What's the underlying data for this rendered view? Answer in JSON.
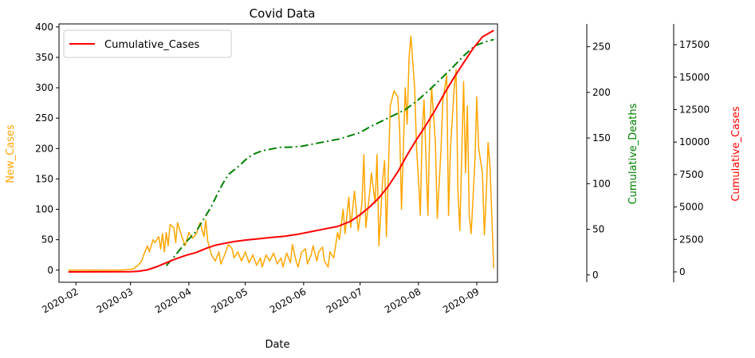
{
  "chart_data": {
    "type": "line",
    "title": "Covid Data",
    "xlabel": "Date",
    "x_ticks": [
      "2020-02",
      "2020-03",
      "2020-04",
      "2020-05",
      "2020-06",
      "2020-07",
      "2020-08",
      "2020-09"
    ],
    "x_range": [
      "2020-01-23",
      "2020-09-12"
    ],
    "legend": {
      "entries": [
        "Cumulative_Cases"
      ],
      "placement": "top-left"
    },
    "grid": false,
    "axes": [
      {
        "id": "left",
        "label": "New_Cases",
        "color": "#FFA500",
        "range": [
          -20,
          405
        ],
        "ticks": [
          0,
          50,
          100,
          150,
          200,
          250,
          300,
          350,
          400
        ]
      },
      {
        "id": "right1",
        "label": "Cumulative_Deaths",
        "color": "#008000",
        "range": [
          -8,
          275
        ],
        "ticks": [
          0,
          50,
          100,
          150,
          200,
          250
        ]
      },
      {
        "id": "right2",
        "label": "Cumulative_Cases",
        "color": "#FF0000",
        "range": [
          -800,
          19100
        ],
        "ticks": [
          0,
          2500,
          5000,
          7500,
          10000,
          12500,
          15000,
          17500
        ]
      }
    ],
    "series": [
      {
        "name": "New_Cases",
        "axis": "left",
        "color": "#FFA500",
        "style": "solid",
        "points": [
          [
            "2020-01-28",
            0
          ],
          [
            "2020-02-10",
            0
          ],
          [
            "2020-02-25",
            0
          ],
          [
            "2020-03-01",
            1
          ],
          [
            "2020-03-03",
            3
          ],
          [
            "2020-03-05",
            8
          ],
          [
            "2020-03-07",
            15
          ],
          [
            "2020-03-08",
            25
          ],
          [
            "2020-03-10",
            40
          ],
          [
            "2020-03-11",
            30
          ],
          [
            "2020-03-13",
            50
          ],
          [
            "2020-03-14",
            45
          ],
          [
            "2020-03-16",
            55
          ],
          [
            "2020-03-17",
            35
          ],
          [
            "2020-03-18",
            60
          ],
          [
            "2020-03-19",
            30
          ],
          [
            "2020-03-20",
            62
          ],
          [
            "2020-03-21",
            40
          ],
          [
            "2020-03-22",
            75
          ],
          [
            "2020-03-24",
            70
          ],
          [
            "2020-03-25",
            45
          ],
          [
            "2020-03-26",
            78
          ],
          [
            "2020-03-28",
            58
          ],
          [
            "2020-03-30",
            40
          ],
          [
            "2020-04-01",
            62
          ],
          [
            "2020-04-03",
            52
          ],
          [
            "2020-04-05",
            60
          ],
          [
            "2020-04-07",
            78
          ],
          [
            "2020-04-09",
            55
          ],
          [
            "2020-04-10",
            82
          ],
          [
            "2020-04-11",
            48
          ],
          [
            "2020-04-13",
            25
          ],
          [
            "2020-04-15",
            15
          ],
          [
            "2020-04-17",
            30
          ],
          [
            "2020-04-18",
            10
          ],
          [
            "2020-04-20",
            25
          ],
          [
            "2020-04-22",
            42
          ],
          [
            "2020-04-24",
            35
          ],
          [
            "2020-04-25",
            20
          ],
          [
            "2020-04-27",
            30
          ],
          [
            "2020-04-29",
            15
          ],
          [
            "2020-05-01",
            30
          ],
          [
            "2020-05-03",
            12
          ],
          [
            "2020-05-05",
            25
          ],
          [
            "2020-05-07",
            8
          ],
          [
            "2020-05-09",
            20
          ],
          [
            "2020-05-10",
            5
          ],
          [
            "2020-05-12",
            25
          ],
          [
            "2020-05-14",
            15
          ],
          [
            "2020-05-16",
            28
          ],
          [
            "2020-05-18",
            10
          ],
          [
            "2020-05-20",
            20
          ],
          [
            "2020-05-21",
            5
          ],
          [
            "2020-05-23",
            28
          ],
          [
            "2020-05-25",
            12
          ],
          [
            "2020-05-26",
            42
          ],
          [
            "2020-05-28",
            15
          ],
          [
            "2020-05-29",
            5
          ],
          [
            "2020-05-31",
            30
          ],
          [
            "2020-06-02",
            35
          ],
          [
            "2020-06-03",
            10
          ],
          [
            "2020-06-05",
            25
          ],
          [
            "2020-06-06",
            40
          ],
          [
            "2020-06-08",
            15
          ],
          [
            "2020-06-09",
            30
          ],
          [
            "2020-06-11",
            38
          ],
          [
            "2020-06-12",
            15
          ],
          [
            "2020-06-14",
            5
          ],
          [
            "2020-06-15",
            30
          ],
          [
            "2020-06-17",
            20
          ],
          [
            "2020-06-19",
            62
          ],
          [
            "2020-06-20",
            50
          ],
          [
            "2020-06-22",
            100
          ],
          [
            "2020-06-23",
            60
          ],
          [
            "2020-06-25",
            120
          ],
          [
            "2020-06-26",
            70
          ],
          [
            "2020-06-28",
            130
          ],
          [
            "2020-06-30",
            65
          ],
          [
            "2020-07-02",
            110
          ],
          [
            "2020-07-03",
            190
          ],
          [
            "2020-07-04",
            70
          ],
          [
            "2020-07-06",
            125
          ],
          [
            "2020-07-07",
            160
          ],
          [
            "2020-07-09",
            110
          ],
          [
            "2020-07-10",
            190
          ],
          [
            "2020-07-11",
            40
          ],
          [
            "2020-07-13",
            150
          ],
          [
            "2020-07-14",
            180
          ],
          [
            "2020-07-15",
            55
          ],
          [
            "2020-07-17",
            270
          ],
          [
            "2020-07-19",
            295
          ],
          [
            "2020-07-21",
            285
          ],
          [
            "2020-07-22",
            230
          ],
          [
            "2020-07-23",
            100
          ],
          [
            "2020-07-25",
            300
          ],
          [
            "2020-07-26",
            240
          ],
          [
            "2020-07-27",
            350
          ],
          [
            "2020-07-28",
            385
          ],
          [
            "2020-07-30",
            300
          ],
          [
            "2020-07-31",
            200
          ],
          [
            "2020-08-01",
            150
          ],
          [
            "2020-08-02",
            90
          ],
          [
            "2020-08-03",
            230
          ],
          [
            "2020-08-04",
            280
          ],
          [
            "2020-08-06",
            90
          ],
          [
            "2020-08-07",
            230
          ],
          [
            "2020-08-08",
            300
          ],
          [
            "2020-08-10",
            210
          ],
          [
            "2020-08-11",
            85
          ],
          [
            "2020-08-13",
            200
          ],
          [
            "2020-08-14",
            280
          ],
          [
            "2020-08-16",
            320
          ],
          [
            "2020-08-17",
            90
          ],
          [
            "2020-08-18",
            200
          ],
          [
            "2020-08-20",
            300
          ],
          [
            "2020-08-21",
            330
          ],
          [
            "2020-08-22",
            130
          ],
          [
            "2020-08-23",
            65
          ],
          [
            "2020-08-24",
            190
          ],
          [
            "2020-08-25",
            310
          ],
          [
            "2020-08-26",
            160
          ],
          [
            "2020-08-27",
            270
          ],
          [
            "2020-08-28",
            90
          ],
          [
            "2020-08-29",
            60
          ],
          [
            "2020-08-31",
            180
          ],
          [
            "2020-09-01",
            285
          ],
          [
            "2020-09-02",
            200
          ],
          [
            "2020-09-04",
            160
          ],
          [
            "2020-09-05",
            58
          ],
          [
            "2020-09-06",
            120
          ],
          [
            "2020-09-07",
            210
          ],
          [
            "2020-09-08",
            170
          ],
          [
            "2020-09-10",
            3
          ]
        ]
      },
      {
        "name": "Cumulative_Deaths",
        "axis": "right1",
        "color": "#008000",
        "style": "dashdot",
        "points": [
          [
            "2020-03-20",
            10
          ],
          [
            "2020-03-25",
            22
          ],
          [
            "2020-03-30",
            35
          ],
          [
            "2020-04-05",
            48
          ],
          [
            "2020-04-10",
            65
          ],
          [
            "2020-04-13",
            75
          ],
          [
            "2020-04-16",
            88
          ],
          [
            "2020-04-19",
            100
          ],
          [
            "2020-04-22",
            110
          ],
          [
            "2020-04-25",
            115
          ],
          [
            "2020-04-28",
            120
          ],
          [
            "2020-05-01",
            126
          ],
          [
            "2020-05-05",
            132
          ],
          [
            "2020-05-10",
            136
          ],
          [
            "2020-05-15",
            138
          ],
          [
            "2020-05-20",
            140
          ],
          [
            "2020-05-25",
            140
          ],
          [
            "2020-05-31",
            141
          ],
          [
            "2020-06-10",
            145
          ],
          [
            "2020-06-20",
            149
          ],
          [
            "2020-07-01",
            156
          ],
          [
            "2020-07-06",
            162
          ],
          [
            "2020-07-12",
            168
          ],
          [
            "2020-07-18",
            174
          ],
          [
            "2020-07-25",
            181
          ],
          [
            "2020-08-01",
            192
          ],
          [
            "2020-08-07",
            203
          ],
          [
            "2020-08-13",
            215
          ],
          [
            "2020-08-19",
            227
          ],
          [
            "2020-08-25",
            240
          ],
          [
            "2020-08-31",
            251
          ],
          [
            "2020-09-05",
            255
          ],
          [
            "2020-09-10",
            258
          ]
        ]
      },
      {
        "name": "Cumulative_Cases",
        "axis": "right2",
        "color": "#FF0000",
        "style": "solid",
        "points": [
          [
            "2020-01-28",
            0
          ],
          [
            "2020-03-01",
            10
          ],
          [
            "2020-03-05",
            40
          ],
          [
            "2020-03-10",
            150
          ],
          [
            "2020-03-15",
            400
          ],
          [
            "2020-03-20",
            700
          ],
          [
            "2020-03-25",
            1000
          ],
          [
            "2020-03-30",
            1250
          ],
          [
            "2020-04-05",
            1500
          ],
          [
            "2020-04-10",
            1800
          ],
          [
            "2020-04-15",
            2050
          ],
          [
            "2020-04-20",
            2200
          ],
          [
            "2020-04-25",
            2330
          ],
          [
            "2020-05-01",
            2450
          ],
          [
            "2020-05-08",
            2550
          ],
          [
            "2020-05-15",
            2650
          ],
          [
            "2020-05-22",
            2750
          ],
          [
            "2020-05-29",
            2900
          ],
          [
            "2020-06-05",
            3100
          ],
          [
            "2020-06-12",
            3300
          ],
          [
            "2020-06-19",
            3500
          ],
          [
            "2020-06-26",
            3900
          ],
          [
            "2020-07-01",
            4400
          ],
          [
            "2020-07-06",
            5000
          ],
          [
            "2020-07-11",
            5700
          ],
          [
            "2020-07-16",
            6600
          ],
          [
            "2020-07-21",
            7700
          ],
          [
            "2020-07-26",
            9000
          ],
          [
            "2020-07-31",
            10200
          ],
          [
            "2020-08-05",
            11300
          ],
          [
            "2020-08-10",
            12500
          ],
          [
            "2020-08-15",
            13800
          ],
          [
            "2020-08-20",
            15000
          ],
          [
            "2020-08-25",
            16100
          ],
          [
            "2020-08-30",
            17200
          ],
          [
            "2020-09-04",
            18100
          ],
          [
            "2020-09-10",
            18600
          ]
        ]
      }
    ]
  }
}
